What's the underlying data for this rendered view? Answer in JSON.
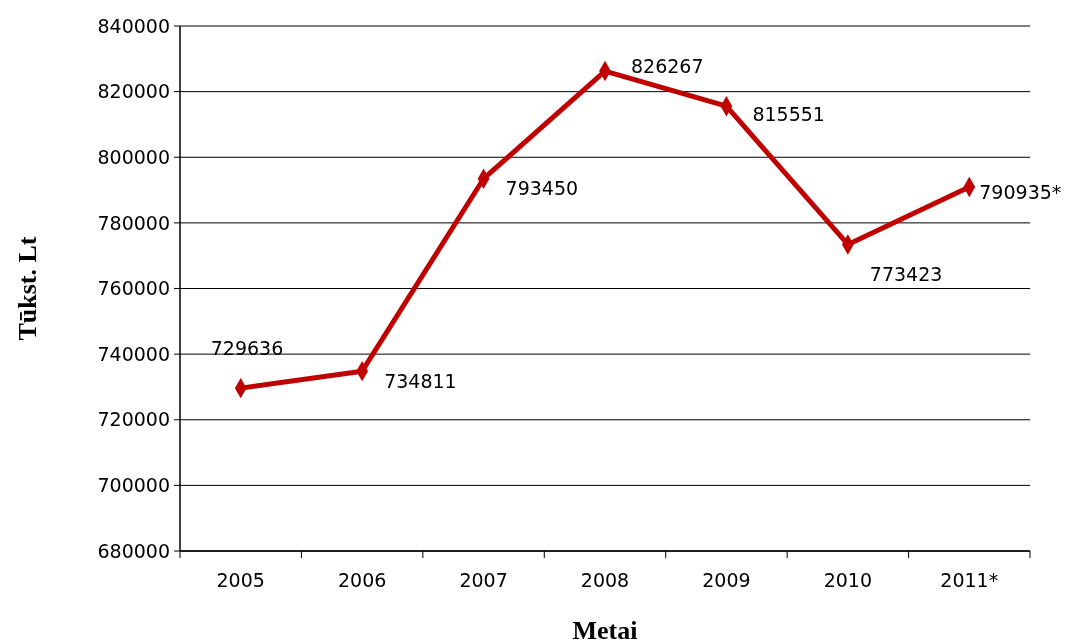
{
  "chart_data": {
    "type": "line",
    "xlabel": "Metai",
    "ylabel": "Tūkst. Lt",
    "categories": [
      "2005",
      "2006",
      "2007",
      "2008",
      "2009",
      "2010",
      "2011*"
    ],
    "series": [
      {
        "color": "#c00000",
        "values": [
          729636,
          734811,
          793450,
          826267,
          815551,
          773423,
          790935
        ]
      }
    ],
    "value_labels": [
      "729636",
      "734811",
      "793450",
      "826267",
      "815551",
      "773423",
      "790935*"
    ],
    "ylim": [
      680000,
      840000
    ],
    "yticks": [
      680000,
      700000,
      720000,
      740000,
      760000,
      780000,
      800000,
      820000,
      840000
    ],
    "grid": "y",
    "marker": "diamond",
    "line_style": "solid"
  }
}
